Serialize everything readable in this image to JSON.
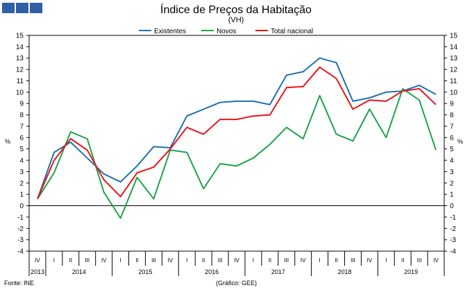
{
  "source_label": "Fonte: INE",
  "graphic_label": "(Gráfico: GEE)",
  "chart_data": {
    "type": "line",
    "title": "Índice de Preços da Habitação",
    "subtitle": "(VH)",
    "ylabel": "%",
    "ylabel_right": "%",
    "ylim": [
      -4,
      15
    ],
    "yticks": [
      -4,
      -3,
      -2,
      -1,
      0,
      1,
      2,
      3,
      4,
      5,
      6,
      7,
      8,
      9,
      10,
      11,
      12,
      13,
      14,
      15
    ],
    "grid": false,
    "legend_position": "top",
    "quarters": [
      "IV",
      "I",
      "II",
      "III",
      "IV",
      "I",
      "II",
      "III",
      "IV",
      "I",
      "II",
      "III",
      "IV",
      "I",
      "II",
      "III",
      "IV",
      "I",
      "II",
      "III",
      "IV",
      "I",
      "II",
      "III",
      "IV"
    ],
    "years": [
      {
        "label": "2013",
        "start": 0,
        "end": 0
      },
      {
        "label": "2014",
        "start": 1,
        "end": 4
      },
      {
        "label": "2015",
        "start": 5,
        "end": 8
      },
      {
        "label": "2016",
        "start": 9,
        "end": 12
      },
      {
        "label": "2017",
        "start": 13,
        "end": 16
      },
      {
        "label": "2018",
        "start": 17,
        "end": 20
      },
      {
        "label": "2019",
        "start": 21,
        "end": 24
      }
    ],
    "series": [
      {
        "name": "Existentes",
        "color": "#1f6fb4",
        "values": [
          0.6,
          4.7,
          5.6,
          4.2,
          2.8,
          2.1,
          3.5,
          5.2,
          5.1,
          7.9,
          8.5,
          9.1,
          9.2,
          9.2,
          8.9,
          11.5,
          11.8,
          13.0,
          12.6,
          9.2,
          9.5,
          10.0,
          10.1,
          10.6,
          9.8
        ]
      },
      {
        "name": "Novos",
        "color": "#1ba34a",
        "values": [
          0.6,
          2.9,
          6.5,
          5.9,
          1.2,
          -1.1,
          2.5,
          0.6,
          4.9,
          4.7,
          1.5,
          3.7,
          3.5,
          4.2,
          5.4,
          6.9,
          5.9,
          9.7,
          6.3,
          5.7,
          8.5,
          6.0,
          10.3,
          9.3,
          4.9
        ]
      },
      {
        "name": "Total nacional",
        "color": "#e5151b",
        "values": [
          0.6,
          4.0,
          5.9,
          4.9,
          2.3,
          0.8,
          2.9,
          3.4,
          5.0,
          6.9,
          6.3,
          7.6,
          7.6,
          7.9,
          8.0,
          10.4,
          10.5,
          12.2,
          11.2,
          8.5,
          9.3,
          9.2,
          10.1,
          10.3,
          8.9
        ]
      }
    ]
  }
}
